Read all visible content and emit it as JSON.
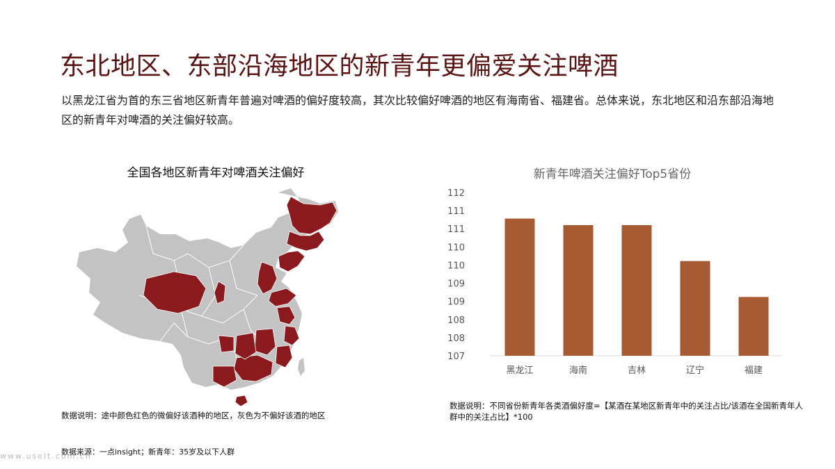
{
  "page": {
    "title": "东北地区、东部沿海地区的新青年更偏爱关注啤酒",
    "subtitle": "以黑龙江省为首的东三省地区新青年普遍对啤酒的偏好度较高，其次比较偏好啤酒的地区有海南省、福建省。总体来说，东北地区和沿东部沿海地区的新青年对啤酒的关注偏好较高。",
    "source": "数据来源：一点insight；新青年：35岁及以下人群",
    "watermark": "www.useit.com.cn"
  },
  "map": {
    "title": "全国各地区新青年对啤酒关注偏好",
    "note": "数据说明：途中颜色红色的微偏好该酒种的地区，灰色为不偏好该酒的地区",
    "highlight_color": "#8b1a1f",
    "base_color": "#c3c3c3"
  },
  "chart_data": {
    "type": "bar",
    "title": "新青年啤酒关注偏好Top5省份",
    "categories": [
      "黑龙江",
      "海南",
      "吉林",
      "辽宁",
      "福建"
    ],
    "values": [
      111.2,
      111.0,
      111.0,
      109.9,
      108.8
    ],
    "ytick_labels": [
      "107",
      "108",
      "108",
      "109",
      "109",
      "110",
      "110",
      "111",
      "111",
      "112"
    ],
    "ylim": [
      107,
      112
    ],
    "bar_color": "#a65b32",
    "note": "数据说明：不同省份新青年各类酒偏好度=【某酒在某地区新青年中的关注占比/该酒在全国新青年人群中的关注占比】*100"
  }
}
